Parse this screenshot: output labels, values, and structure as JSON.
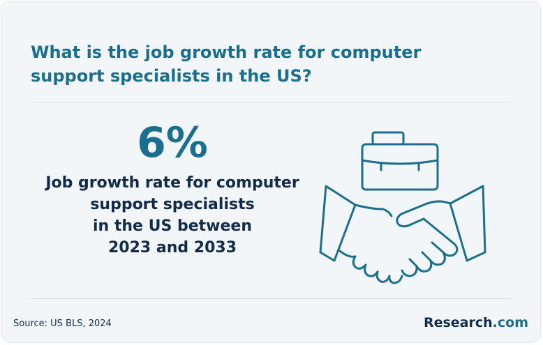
{
  "headline": "What is the job growth rate for computer support specialists in the US?",
  "stat": {
    "value": "6%",
    "caption_lines": [
      "Job growth rate for computer",
      "support specialists",
      "in the US between",
      "2023 and 2033"
    ]
  },
  "illustration": {
    "icon_names": [
      "briefcase-icon",
      "handshake-icon"
    ],
    "stroke_color": "#1b6f8e"
  },
  "footer": {
    "source": "Source: US BLS, 2024",
    "brand_name": "Research",
    "brand_tld": ".com"
  },
  "colors": {
    "accent": "#1b6f8e",
    "text_dark": "#102c4a",
    "background": "#f3f6f8"
  }
}
